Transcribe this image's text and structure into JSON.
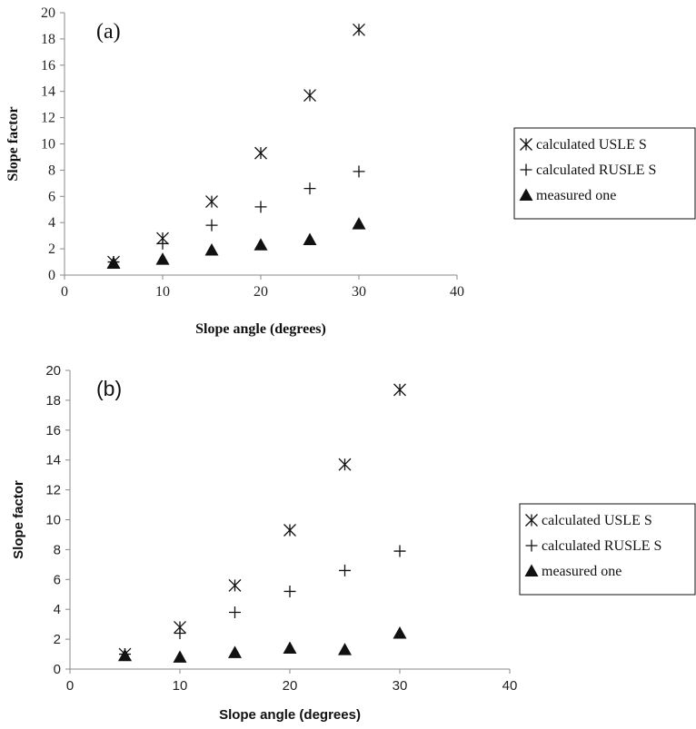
{
  "chart_data": [
    {
      "type": "scatter",
      "panel_label": "(a)",
      "xlabel": "Slope angle (degrees)",
      "ylabel": "Slope factor",
      "xlim": [
        0,
        40
      ],
      "ylim": [
        0,
        20
      ],
      "x_ticks": [
        "0",
        "10",
        "20",
        "30",
        "40"
      ],
      "y_ticks": [
        "0",
        "2",
        "4",
        "6",
        "8",
        "10",
        "12",
        "14",
        "16",
        "18",
        "20"
      ],
      "grid": false,
      "legend_position": "right",
      "series": [
        {
          "name": "calculated USLE  S",
          "marker": "asterisk",
          "x": [
            5,
            10,
            15,
            20,
            25,
            30
          ],
          "y": [
            1.0,
            2.8,
            5.6,
            9.3,
            13.7,
            18.7
          ]
        },
        {
          "name": "calculated RUSLE S",
          "marker": "plus",
          "x": [
            5,
            10,
            15,
            20,
            25,
            30
          ],
          "y": [
            1.0,
            2.4,
            3.8,
            5.2,
            6.6,
            7.9
          ]
        },
        {
          "name": "measured one",
          "marker": "triangle",
          "x": [
            5,
            10,
            15,
            20,
            25,
            30
          ],
          "y": [
            0.9,
            1.2,
            1.9,
            2.3,
            2.7,
            3.9
          ]
        }
      ]
    },
    {
      "type": "scatter",
      "panel_label": "(b)",
      "xlabel": "Slope angle (degrees)",
      "ylabel": "Slope factor",
      "xlim": [
        0,
        40
      ],
      "ylim": [
        0,
        20
      ],
      "x_ticks": [
        "0",
        "10",
        "20",
        "30",
        "40"
      ],
      "y_ticks": [
        "0",
        "2",
        "4",
        "6",
        "8",
        "10",
        "12",
        "14",
        "16",
        "18",
        "20"
      ],
      "grid": false,
      "legend_position": "right",
      "series": [
        {
          "name": "calculated USLE  S",
          "marker": "asterisk",
          "x": [
            5,
            10,
            15,
            20,
            25,
            30
          ],
          "y": [
            1.0,
            2.8,
            5.6,
            9.3,
            13.7,
            18.7
          ]
        },
        {
          "name": "calculated RUSLE S",
          "marker": "plus",
          "x": [
            5,
            10,
            15,
            20,
            25,
            30
          ],
          "y": [
            1.0,
            2.4,
            3.8,
            5.2,
            6.6,
            7.9
          ]
        },
        {
          "name": "measured one",
          "marker": "triangle",
          "x": [
            5,
            10,
            15,
            20,
            25,
            30
          ],
          "y": [
            0.9,
            0.8,
            1.1,
            1.4,
            1.3,
            2.4
          ]
        }
      ]
    }
  ]
}
